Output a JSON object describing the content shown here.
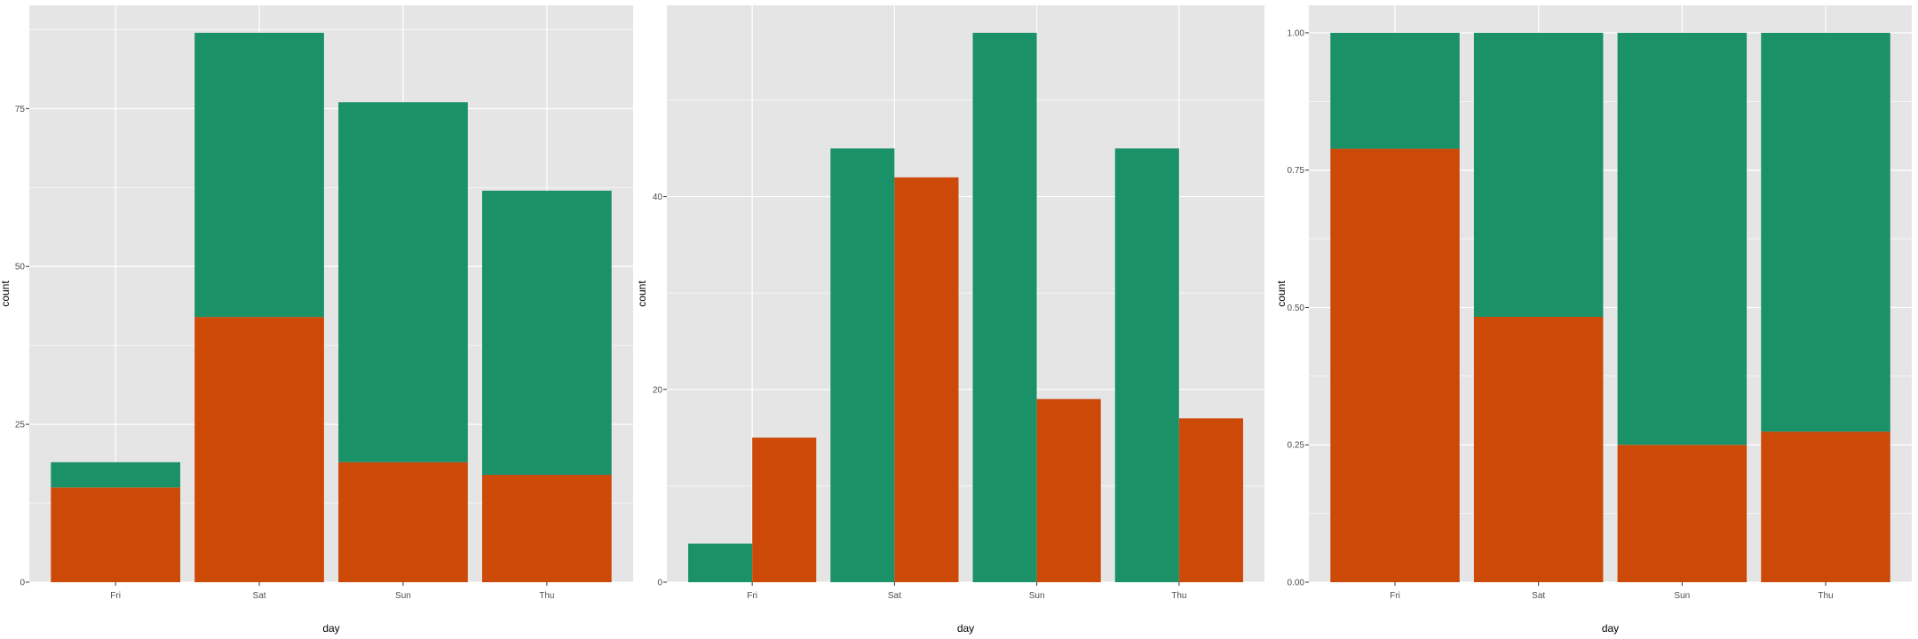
{
  "colors": {
    "panel_bg": "#e5e5e5",
    "grid": "#ffffff",
    "series_top": "#1b9168",
    "series_bottom": "#cd4908",
    "tick_text": "#4d4d4d"
  },
  "chart_data": [
    {
      "type": "bar",
      "barmode": "stack",
      "categories": [
        "Fri",
        "Sat",
        "Sun",
        "Thu"
      ],
      "series": [
        {
          "color": "#cd4908",
          "values": [
            15,
            42,
            19,
            17
          ]
        },
        {
          "color": "#1b9168",
          "values": [
            4,
            45,
            57,
            45
          ]
        }
      ],
      "xlabel": "day",
      "ylabel": "count",
      "ylim": [
        0,
        91.35
      ],
      "yticks": [
        0,
        25,
        50,
        75
      ],
      "ytick_labels": [
        "0",
        "25",
        "50",
        "75"
      ],
      "grid": true,
      "legend": "none"
    },
    {
      "type": "bar",
      "barmode": "dodge",
      "categories": [
        "Fri",
        "Sat",
        "Sun",
        "Thu"
      ],
      "series": [
        {
          "color": "#1b9168",
          "values": [
            4,
            45,
            57,
            45
          ]
        },
        {
          "color": "#cd4908",
          "values": [
            15,
            42,
            19,
            17
          ]
        }
      ],
      "xlabel": "day",
      "ylabel": "count",
      "ylim": [
        0,
        59.85
      ],
      "yticks": [
        0,
        20,
        40
      ],
      "ytick_labels": [
        "0",
        "20",
        "40"
      ],
      "grid": true,
      "legend": "none"
    },
    {
      "type": "bar",
      "barmode": "fill",
      "categories": [
        "Fri",
        "Sat",
        "Sun",
        "Thu"
      ],
      "series": [
        {
          "color": "#cd4908",
          "values": [
            0.789,
            0.483,
            0.25,
            0.274
          ]
        },
        {
          "color": "#1b9168",
          "values": [
            0.211,
            0.517,
            0.75,
            0.726
          ]
        }
      ],
      "xlabel": "day",
      "ylabel": "count",
      "ylim": [
        0,
        1.05
      ],
      "yticks": [
        0,
        0.25,
        0.5,
        0.75,
        1.0
      ],
      "ytick_labels": [
        "0.00",
        "0.25",
        "0.50",
        "0.75",
        "1.00"
      ],
      "grid": true,
      "legend": "none"
    }
  ]
}
